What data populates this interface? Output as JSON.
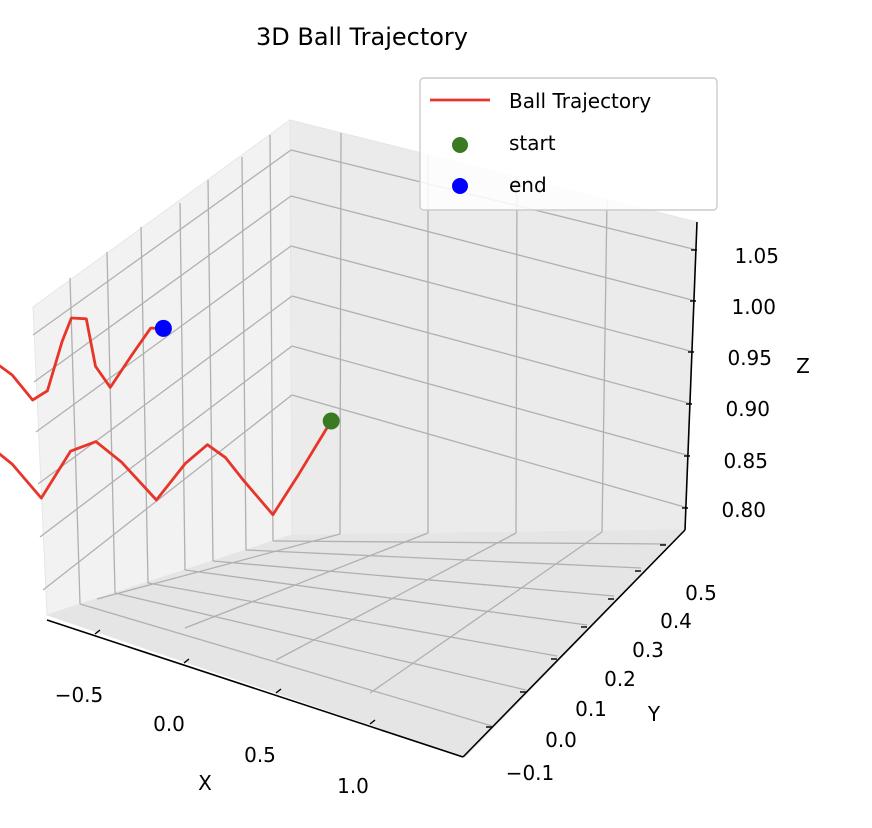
{
  "chart_data": {
    "type": "line",
    "projection": "3d",
    "title": "3D Ball Trajectory",
    "xlabel": "X",
    "ylabel": "Y",
    "zlabel": "Z",
    "xlim": [
      -0.75,
      1.45
    ],
    "ylim": [
      -0.15,
      0.55
    ],
    "zlim": [
      0.78,
      1.07
    ],
    "xticks": [
      "−0.5",
      "0.0",
      "0.5",
      "1.0"
    ],
    "xtick_values": [
      -0.5,
      0.0,
      0.5,
      1.0
    ],
    "yticks": [
      "−0.1",
      "0.0",
      "0.1",
      "0.2",
      "0.3",
      "0.4",
      "0.5"
    ],
    "ytick_values": [
      -0.1,
      0.0,
      0.1,
      0.2,
      0.3,
      0.4,
      0.5
    ],
    "zticks": [
      "0.80",
      "0.85",
      "0.90",
      "0.95",
      "1.00",
      "1.05"
    ],
    "ztick_values": [
      0.8,
      0.85,
      0.9,
      0.95,
      1.0,
      1.05
    ],
    "grid": true,
    "legend_position": "top-right",
    "legend": [
      {
        "label": "Ball Trajectory",
        "kind": "line",
        "color": "#e8352a"
      },
      {
        "label": "start",
        "kind": "marker",
        "color": "#3a7a22"
      },
      {
        "label": "end",
        "kind": "marker",
        "color": "#0000ff"
      }
    ],
    "series": [
      {
        "name": "Ball Trajectory",
        "color": "#e8352a",
        "points": [
          [
            0.8,
            0.0,
            0.9
          ],
          [
            0.75,
            0.02,
            0.87
          ],
          [
            0.7,
            0.04,
            0.84
          ],
          [
            0.6,
            0.06,
            0.8
          ],
          [
            0.5,
            0.09,
            0.83
          ],
          [
            0.44,
            0.11,
            0.85
          ],
          [
            0.38,
            0.13,
            0.86
          ],
          [
            0.3,
            0.15,
            0.84
          ],
          [
            0.2,
            0.18,
            0.8
          ],
          [
            0.05,
            0.2,
            0.84
          ],
          [
            -0.05,
            0.22,
            0.86
          ],
          [
            -0.15,
            0.24,
            0.85
          ],
          [
            -0.25,
            0.27,
            0.8
          ],
          [
            -0.35,
            0.3,
            0.83
          ],
          [
            -0.45,
            0.32,
            0.85
          ],
          [
            -0.55,
            0.34,
            0.84
          ],
          [
            -0.65,
            0.37,
            0.8
          ],
          [
            -0.6,
            0.39,
            0.77
          ],
          [
            -0.5,
            0.42,
            0.75
          ],
          [
            -0.35,
            0.44,
            0.8
          ],
          [
            -0.2,
            0.46,
            0.84
          ],
          [
            -0.1,
            0.47,
            0.86
          ],
          [
            0.0,
            0.48,
            0.84
          ],
          [
            0.15,
            0.5,
            0.8
          ],
          [
            0.25,
            0.51,
            0.8
          ],
          [
            0.35,
            0.52,
            0.84
          ],
          [
            0.4,
            0.52,
            0.86
          ],
          [
            0.5,
            0.53,
            0.85
          ],
          [
            0.55,
            0.53,
            0.8
          ],
          [
            0.65,
            0.54,
            0.77
          ],
          [
            0.75,
            0.53,
            0.8
          ],
          [
            0.85,
            0.53,
            0.82
          ],
          [
            0.9,
            0.52,
            0.82
          ]
        ]
      }
    ],
    "markers": [
      {
        "name": "start",
        "color": "#3a7a22",
        "point": [
          0.8,
          0.0,
          0.9
        ]
      },
      {
        "name": "end",
        "color": "#0000ff",
        "point": [
          0.9,
          0.52,
          0.82
        ]
      }
    ]
  }
}
